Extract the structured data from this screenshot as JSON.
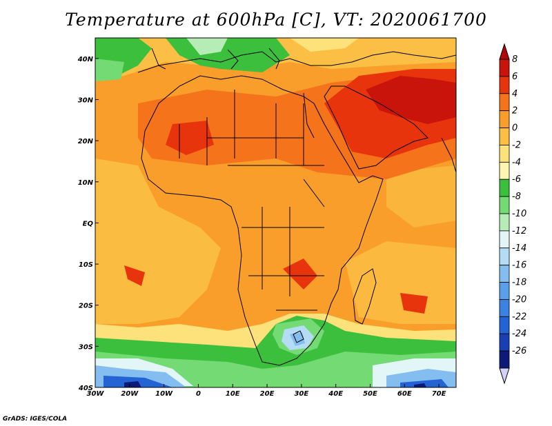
{
  "title": "Temperature at 600hPa [C], VT: 2020061700",
  "credit": "GrADS: IGES/COLA",
  "map": {
    "lon_range": [
      -30,
      75
    ],
    "lat_range": [
      -40,
      45
    ],
    "lat_ticks": [
      {
        "value": 40,
        "label": "40N"
      },
      {
        "value": 30,
        "label": "30N"
      },
      {
        "value": 20,
        "label": "20N"
      },
      {
        "value": 10,
        "label": "10N"
      },
      {
        "value": 0,
        "label": "EQ"
      },
      {
        "value": -10,
        "label": "10S"
      },
      {
        "value": -20,
        "label": "20S"
      },
      {
        "value": -30,
        "label": "30S"
      },
      {
        "value": -40,
        "label": "40S"
      }
    ],
    "lon_ticks": [
      {
        "value": -30,
        "label": "30W"
      },
      {
        "value": -20,
        "label": "20W"
      },
      {
        "value": -10,
        "label": "10W"
      },
      {
        "value": 0,
        "label": "0"
      },
      {
        "value": 10,
        "label": "10E"
      },
      {
        "value": 20,
        "label": "20E"
      },
      {
        "value": 30,
        "label": "30E"
      },
      {
        "value": 40,
        "label": "40E"
      },
      {
        "value": 50,
        "label": "50E"
      },
      {
        "value": 60,
        "label": "60E"
      },
      {
        "value": 70,
        "label": "70E"
      }
    ]
  },
  "colorbar": {
    "levels": [
      {
        "label": "8",
        "color": "#c8140a"
      },
      {
        "label": "6",
        "color": "#e8340c"
      },
      {
        "label": "4",
        "color": "#f5731a"
      },
      {
        "label": "2",
        "color": "#f99e2a"
      },
      {
        "label": "0",
        "color": "#fbbf45"
      },
      {
        "label": "-2",
        "color": "#fde17a"
      },
      {
        "label": "-4",
        "color": "#fdf5b0"
      },
      {
        "label": "-6",
        "color": "#3cbf3c"
      },
      {
        "label": "-8",
        "color": "#74da74"
      },
      {
        "label": "-10",
        "color": "#b6ecb6"
      },
      {
        "label": "-12",
        "color": "#e2f6f8"
      },
      {
        "label": "-14",
        "color": "#b4dcf5"
      },
      {
        "label": "-16",
        "color": "#84bef0"
      },
      {
        "label": "-18",
        "color": "#5a9fe8"
      },
      {
        "label": "-20",
        "color": "#3c82e1"
      },
      {
        "label": "-22",
        "color": "#2463d4"
      },
      {
        "label": "-24",
        "color": "#1840b4"
      },
      {
        "label": "-26",
        "color": "#0c1a78"
      }
    ],
    "top_color": "#b00808",
    "bottom_color": "#d2d2f8"
  }
}
